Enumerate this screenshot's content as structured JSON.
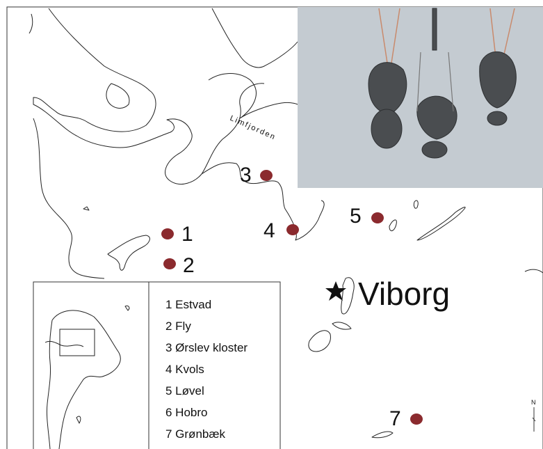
{
  "map": {
    "water_label": "Limfjorden",
    "city": "Viborg",
    "north": "N",
    "sites": [
      "1",
      "2",
      "3",
      "4",
      "5",
      "7"
    ],
    "legend": [
      "1 Estvad",
      "2 Fly",
      "3 Ørslev kloster",
      "4 Kvols",
      "5 Løvel",
      "6 Hobro",
      "7 Grønbæk"
    ]
  }
}
